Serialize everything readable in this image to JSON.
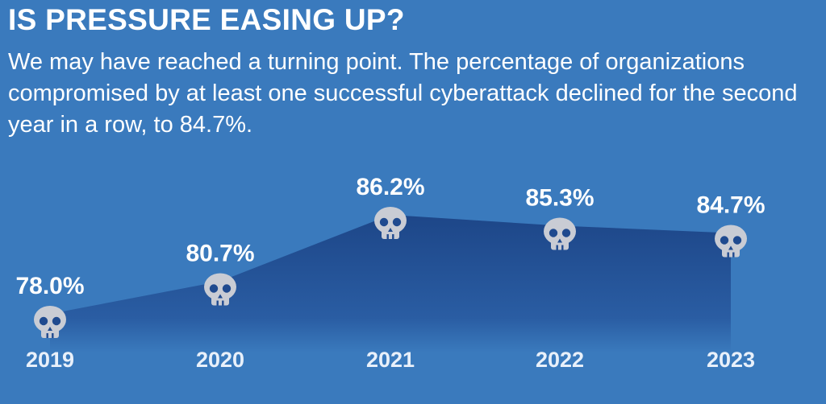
{
  "header": {
    "title": "IS PRESSURE EASING UP?",
    "subtitle": "We may have reached a turning point. The percentage of organizations compromised by at least one successful cyberattack declined for the second year in a row, to 84.7%."
  },
  "icons": {
    "marker": "skull-icon"
  },
  "colors": {
    "background": "#3a7abd",
    "area": "#1f4a8f",
    "marker": "#c9ccd4",
    "text": "#ffffff"
  },
  "chart_data": {
    "type": "area",
    "title": "IS PRESSURE EASING UP?",
    "categories": [
      "2019",
      "2020",
      "2021",
      "2022",
      "2023"
    ],
    "values": [
      78.0,
      80.7,
      86.2,
      85.3,
      84.7
    ],
    "data_labels": [
      "78.0%",
      "80.7%",
      "86.2%",
      "85.3%",
      "84.7%"
    ],
    "unit": "%",
    "grid": false,
    "legend": "none"
  }
}
